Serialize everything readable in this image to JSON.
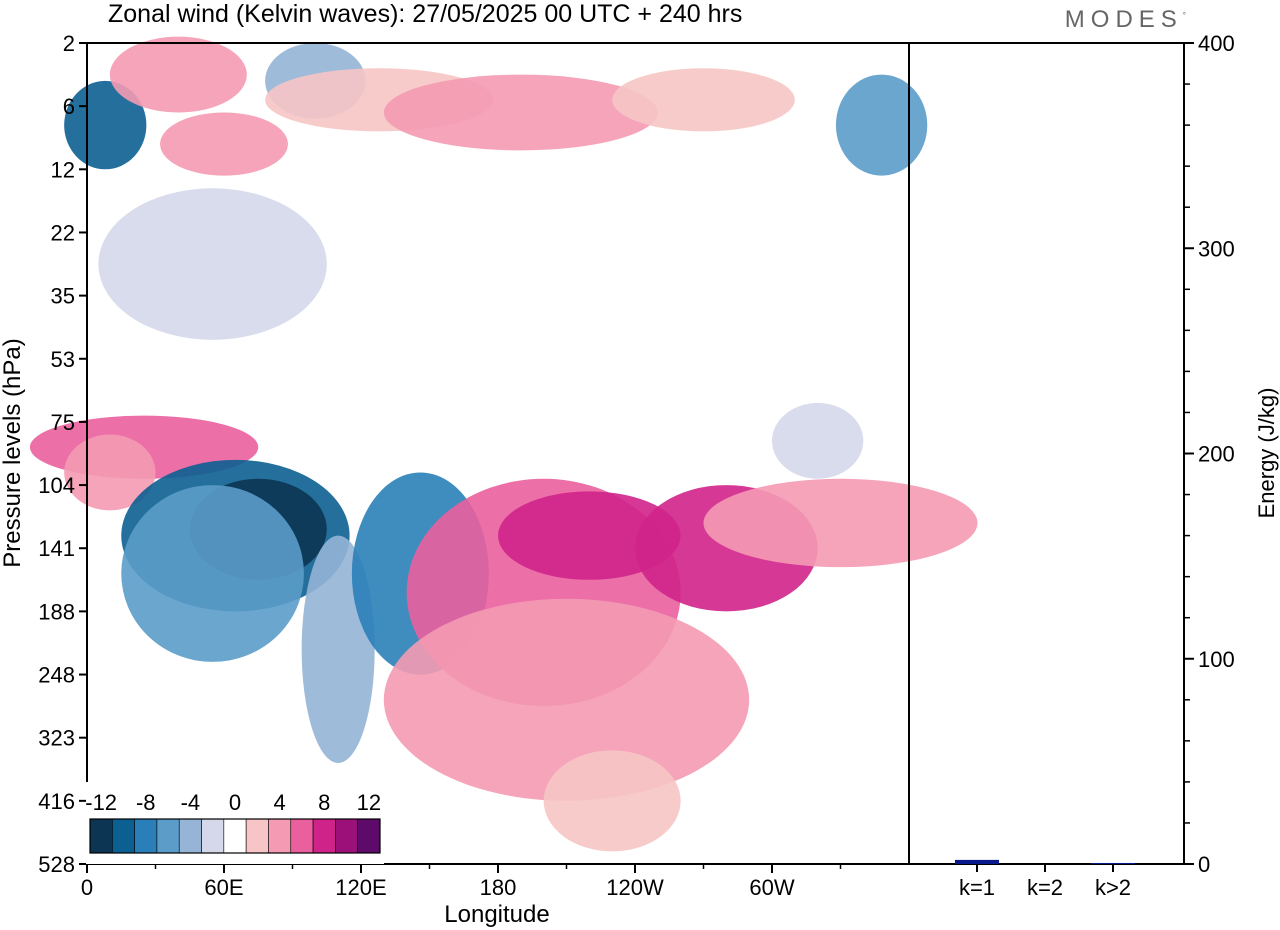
{
  "brand": "MODES",
  "brand_mark": "°",
  "colors": {
    "contour_levels": [
      -12,
      -10,
      -8,
      -6,
      -4,
      -2,
      0,
      2,
      4,
      6,
      8,
      10,
      12
    ],
    "palette": [
      "#0b3552",
      "#0c5f91",
      "#2a7fb8",
      "#5b9cc9",
      "#95b4d6",
      "#d4d8ea",
      "#ffffff",
      "#f7c5c5",
      "#f49ab3",
      "#ea5f9e",
      "#d0238a",
      "#9b1079",
      "#5e0a6a"
    ],
    "bar": "#0a1a8a"
  },
  "chart_data": [
    {
      "type": "heatmap",
      "title": "Zonal wind (Kelvin waves):  27/05/2025  00 UTC  + 240 hrs",
      "xlabel": "Longitude",
      "ylabel": "Pressure levels (hPa)",
      "x_ticks": [
        "0",
        "60E",
        "120E",
        "180",
        "120W",
        "60W"
      ],
      "x_tick_values": [
        0,
        60,
        120,
        180,
        240,
        300
      ],
      "xlim": [
        0,
        360
      ],
      "y_ticks": [
        "2",
        "6",
        "12",
        "22",
        "35",
        "53",
        "75",
        "104",
        "141",
        "188",
        "248",
        "323",
        "416",
        "528"
      ],
      "y_scale": "level-index",
      "y_inverted": true,
      "colorbar_labels": [
        "-12",
        "-8",
        "-4",
        "0",
        "4",
        "8",
        "12"
      ],
      "cells": [
        {
          "lon": 8,
          "level": 1.3,
          "value": -9,
          "dlon": 18,
          "dlev": 0.7
        },
        {
          "lon": 40,
          "level": 0.5,
          "value": 4,
          "dlon": 30,
          "dlev": 0.6
        },
        {
          "lon": 60,
          "level": 1.6,
          "value": 5,
          "dlon": 28,
          "dlev": 0.5
        },
        {
          "lon": 100,
          "level": 0.6,
          "value": -4,
          "dlon": 22,
          "dlev": 0.6
        },
        {
          "lon": 128,
          "level": 0.9,
          "value": 3,
          "dlon": 50,
          "dlev": 0.5
        },
        {
          "lon": 190,
          "level": 1.1,
          "value": 4,
          "dlon": 60,
          "dlev": 0.6
        },
        {
          "lon": 270,
          "level": 0.9,
          "value": 3,
          "dlon": 40,
          "dlev": 0.5
        },
        {
          "lon": 348,
          "level": 1.3,
          "value": -6,
          "dlon": 20,
          "dlev": 0.8
        },
        {
          "lon": 55,
          "level": 3.5,
          "value": -2,
          "dlon": 50,
          "dlev": 1.2
        },
        {
          "lon": 25,
          "level": 6.4,
          "value": 6,
          "dlon": 50,
          "dlev": 0.5
        },
        {
          "lon": 10,
          "level": 6.8,
          "value": 4,
          "dlon": 20,
          "dlev": 0.6
        },
        {
          "lon": 65,
          "level": 7.8,
          "value": -9,
          "dlon": 50,
          "dlev": 1.2
        },
        {
          "lon": 75,
          "level": 7.7,
          "value": -12,
          "dlon": 30,
          "dlev": 0.8
        },
        {
          "lon": 55,
          "level": 8.4,
          "value": -6,
          "dlon": 40,
          "dlev": 1.4
        },
        {
          "lon": 110,
          "level": 9.6,
          "value": -4,
          "dlon": 16,
          "dlev": 1.8
        },
        {
          "lon": 146,
          "level": 8.4,
          "value": -7,
          "dlon": 30,
          "dlev": 1.6
        },
        {
          "lon": 200,
          "level": 8.7,
          "value": 6,
          "dlon": 60,
          "dlev": 1.8
        },
        {
          "lon": 220,
          "level": 7.8,
          "value": 9,
          "dlon": 40,
          "dlev": 0.7
        },
        {
          "lon": 210,
          "level": 10.4,
          "value": 4,
          "dlon": 80,
          "dlev": 1.6
        },
        {
          "lon": 280,
          "level": 8.0,
          "value": 8,
          "dlon": 40,
          "dlev": 1.0
        },
        {
          "lon": 330,
          "level": 7.6,
          "value": 5,
          "dlon": 60,
          "dlev": 0.7
        },
        {
          "lon": 320,
          "level": 6.3,
          "value": -2,
          "dlon": 20,
          "dlev": 0.6
        },
        {
          "lon": 230,
          "level": 12.0,
          "value": 2,
          "dlon": 30,
          "dlev": 0.8
        }
      ]
    },
    {
      "type": "bar",
      "ylabel": "Energy (J/kg)",
      "ylim": [
        0,
        400
      ],
      "y_ticks": [
        "0",
        "100",
        "200",
        "300",
        "400"
      ],
      "categories": [
        "k=1",
        "k=2",
        "k>2"
      ],
      "values": [
        2,
        0,
        0.5
      ]
    }
  ]
}
